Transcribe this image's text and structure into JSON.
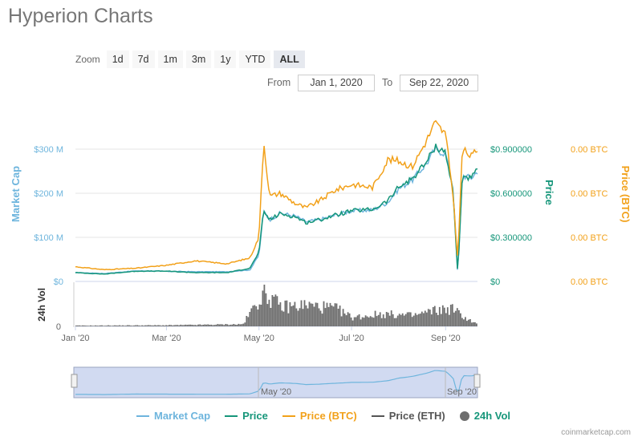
{
  "title": "Hyperion Charts",
  "zoom": {
    "label": "Zoom",
    "buttons": [
      "1d",
      "7d",
      "1m",
      "3m",
      "1y",
      "YTD",
      "ALL"
    ],
    "active": "ALL"
  },
  "range": {
    "from_label": "From",
    "from_value": "Jan 1, 2020",
    "to_label": "To",
    "to_value": "Sep 22, 2020"
  },
  "credit": "coinmarketcap.com",
  "colors": {
    "market_cap": "#6eb5dd",
    "price": "#16967a",
    "price_btc": "#f2a11a",
    "price_eth": "#555555",
    "vol": "#6e6e6e",
    "navigator_fill": "#c9d3ee"
  },
  "legend": [
    {
      "name": "Market Cap",
      "color": "#6eb5dd",
      "kind": "line"
    },
    {
      "name": "Price",
      "color": "#16967a",
      "kind": "line"
    },
    {
      "name": "Price (BTC)",
      "color": "#f2a11a",
      "kind": "line"
    },
    {
      "name": "Price (ETH)",
      "color": "#555555",
      "kind": "line"
    },
    {
      "name": "24h Vol",
      "color": "#6e6e6e",
      "kind": "dot"
    }
  ],
  "chart_data": {
    "type": "line",
    "x_range": [
      "2020-01-01",
      "2020-09-22"
    ],
    "x_ticks": [
      {
        "date": "2020-01-01",
        "label": "Jan '20"
      },
      {
        "date": "2020-03-01",
        "label": "Mar '20"
      },
      {
        "date": "2020-05-01",
        "label": "May '20"
      },
      {
        "date": "2020-07-01",
        "label": "Jul '20"
      },
      {
        "date": "2020-09-01",
        "label": "Sep '20"
      }
    ],
    "axes": {
      "market_cap": {
        "label": "Market Cap",
        "ticks": [
          "$0",
          "$100 M",
          "$200 M",
          "$300 M"
        ],
        "range": [
          0,
          300
        ]
      },
      "price": {
        "label": "Price",
        "ticks": [
          "$0",
          "$0.300000",
          "$0.600000",
          "$0.900000"
        ],
        "range": [
          0,
          0.9
        ]
      },
      "price_btc": {
        "label": "Price (BTC)",
        "ticks": [
          "0.00 BTC",
          "0.00 BTC",
          "0.00 BTC",
          "0.00 BTC"
        ]
      },
      "vol": {
        "label": "24h Vol",
        "ticks": [
          "0"
        ]
      }
    },
    "series": [
      {
        "name": "Market Cap",
        "y_axis": "market_cap",
        "points": [
          [
            "2020-01-01",
            20
          ],
          [
            "2020-01-20",
            18
          ],
          [
            "2020-02-10",
            24
          ],
          [
            "2020-03-01",
            23
          ],
          [
            "2020-03-20",
            22
          ],
          [
            "2020-04-10",
            22
          ],
          [
            "2020-04-25",
            26
          ],
          [
            "2020-05-01",
            60
          ],
          [
            "2020-05-04",
            160
          ],
          [
            "2020-05-08",
            140
          ],
          [
            "2020-05-15",
            155
          ],
          [
            "2020-05-25",
            148
          ],
          [
            "2020-06-01",
            135
          ],
          [
            "2020-06-10",
            140
          ],
          [
            "2020-06-20",
            150
          ],
          [
            "2020-07-01",
            160
          ],
          [
            "2020-07-15",
            162
          ],
          [
            "2020-07-25",
            180
          ],
          [
            "2020-08-01",
            210
          ],
          [
            "2020-08-10",
            230
          ],
          [
            "2020-08-20",
            270
          ],
          [
            "2020-08-25",
            300
          ],
          [
            "2020-09-01",
            290
          ],
          [
            "2020-09-06",
            210
          ],
          [
            "2020-09-09",
            10
          ],
          [
            "2020-09-12",
            240
          ],
          [
            "2020-09-18",
            235
          ],
          [
            "2020-09-22",
            250
          ]
        ]
      },
      {
        "name": "Price",
        "y_axis": "price",
        "points": [
          [
            "2020-01-01",
            0.06
          ],
          [
            "2020-01-20",
            0.05
          ],
          [
            "2020-02-10",
            0.07
          ],
          [
            "2020-03-01",
            0.07
          ],
          [
            "2020-03-20",
            0.06
          ],
          [
            "2020-04-10",
            0.06
          ],
          [
            "2020-04-25",
            0.09
          ],
          [
            "2020-05-01",
            0.2
          ],
          [
            "2020-05-04",
            0.48
          ],
          [
            "2020-05-08",
            0.42
          ],
          [
            "2020-05-15",
            0.46
          ],
          [
            "2020-05-25",
            0.44
          ],
          [
            "2020-06-01",
            0.4
          ],
          [
            "2020-06-10",
            0.42
          ],
          [
            "2020-06-20",
            0.45
          ],
          [
            "2020-07-01",
            0.48
          ],
          [
            "2020-07-15",
            0.49
          ],
          [
            "2020-07-25",
            0.55
          ],
          [
            "2020-08-01",
            0.64
          ],
          [
            "2020-08-10",
            0.7
          ],
          [
            "2020-08-20",
            0.82
          ],
          [
            "2020-08-25",
            0.92
          ],
          [
            "2020-09-01",
            0.88
          ],
          [
            "2020-09-06",
            0.6
          ],
          [
            "2020-09-09",
            0.04
          ],
          [
            "2020-09-12",
            0.72
          ],
          [
            "2020-09-18",
            0.7
          ],
          [
            "2020-09-22",
            0.76
          ]
        ]
      },
      {
        "name": "Price (BTC)",
        "y_axis": "price",
        "points": [
          [
            "2020-01-01",
            0.1
          ],
          [
            "2020-01-20",
            0.08
          ],
          [
            "2020-02-10",
            0.09
          ],
          [
            "2020-03-01",
            0.11
          ],
          [
            "2020-03-20",
            0.14
          ],
          [
            "2020-04-10",
            0.12
          ],
          [
            "2020-04-25",
            0.16
          ],
          [
            "2020-05-01",
            0.3
          ],
          [
            "2020-05-04",
            0.96
          ],
          [
            "2020-05-08",
            0.58
          ],
          [
            "2020-05-15",
            0.6
          ],
          [
            "2020-05-25",
            0.53
          ],
          [
            "2020-06-01",
            0.5
          ],
          [
            "2020-06-10",
            0.55
          ],
          [
            "2020-06-20",
            0.62
          ],
          [
            "2020-07-01",
            0.66
          ],
          [
            "2020-07-15",
            0.64
          ],
          [
            "2020-07-25",
            0.83
          ],
          [
            "2020-08-01",
            0.82
          ],
          [
            "2020-08-10",
            0.78
          ],
          [
            "2020-08-20",
            0.97
          ],
          [
            "2020-08-25",
            1.08
          ],
          [
            "2020-09-01",
            1.0
          ],
          [
            "2020-09-06",
            0.58
          ],
          [
            "2020-09-09",
            0.14
          ],
          [
            "2020-09-12",
            0.9
          ],
          [
            "2020-09-18",
            0.85
          ],
          [
            "2020-09-22",
            0.9
          ]
        ]
      },
      {
        "name": "24h Vol",
        "y_axis": "vol",
        "kind": "column",
        "points": [
          [
            "2020-01-01",
            0.02
          ],
          [
            "2020-03-01",
            0.03
          ],
          [
            "2020-04-20",
            0.06
          ],
          [
            "2020-05-01",
            0.8
          ],
          [
            "2020-05-04",
            0.95
          ],
          [
            "2020-05-15",
            0.55
          ],
          [
            "2020-06-01",
            0.6
          ],
          [
            "2020-06-20",
            0.5
          ],
          [
            "2020-07-01",
            0.25
          ],
          [
            "2020-07-20",
            0.35
          ],
          [
            "2020-08-10",
            0.3
          ],
          [
            "2020-08-25",
            0.45
          ],
          [
            "2020-09-05",
            0.5
          ],
          [
            "2020-09-15",
            0.2
          ],
          [
            "2020-09-22",
            0.05
          ]
        ]
      }
    ],
    "navigator": {
      "labels": [
        "May '20",
        "Sep '20"
      ]
    }
  }
}
